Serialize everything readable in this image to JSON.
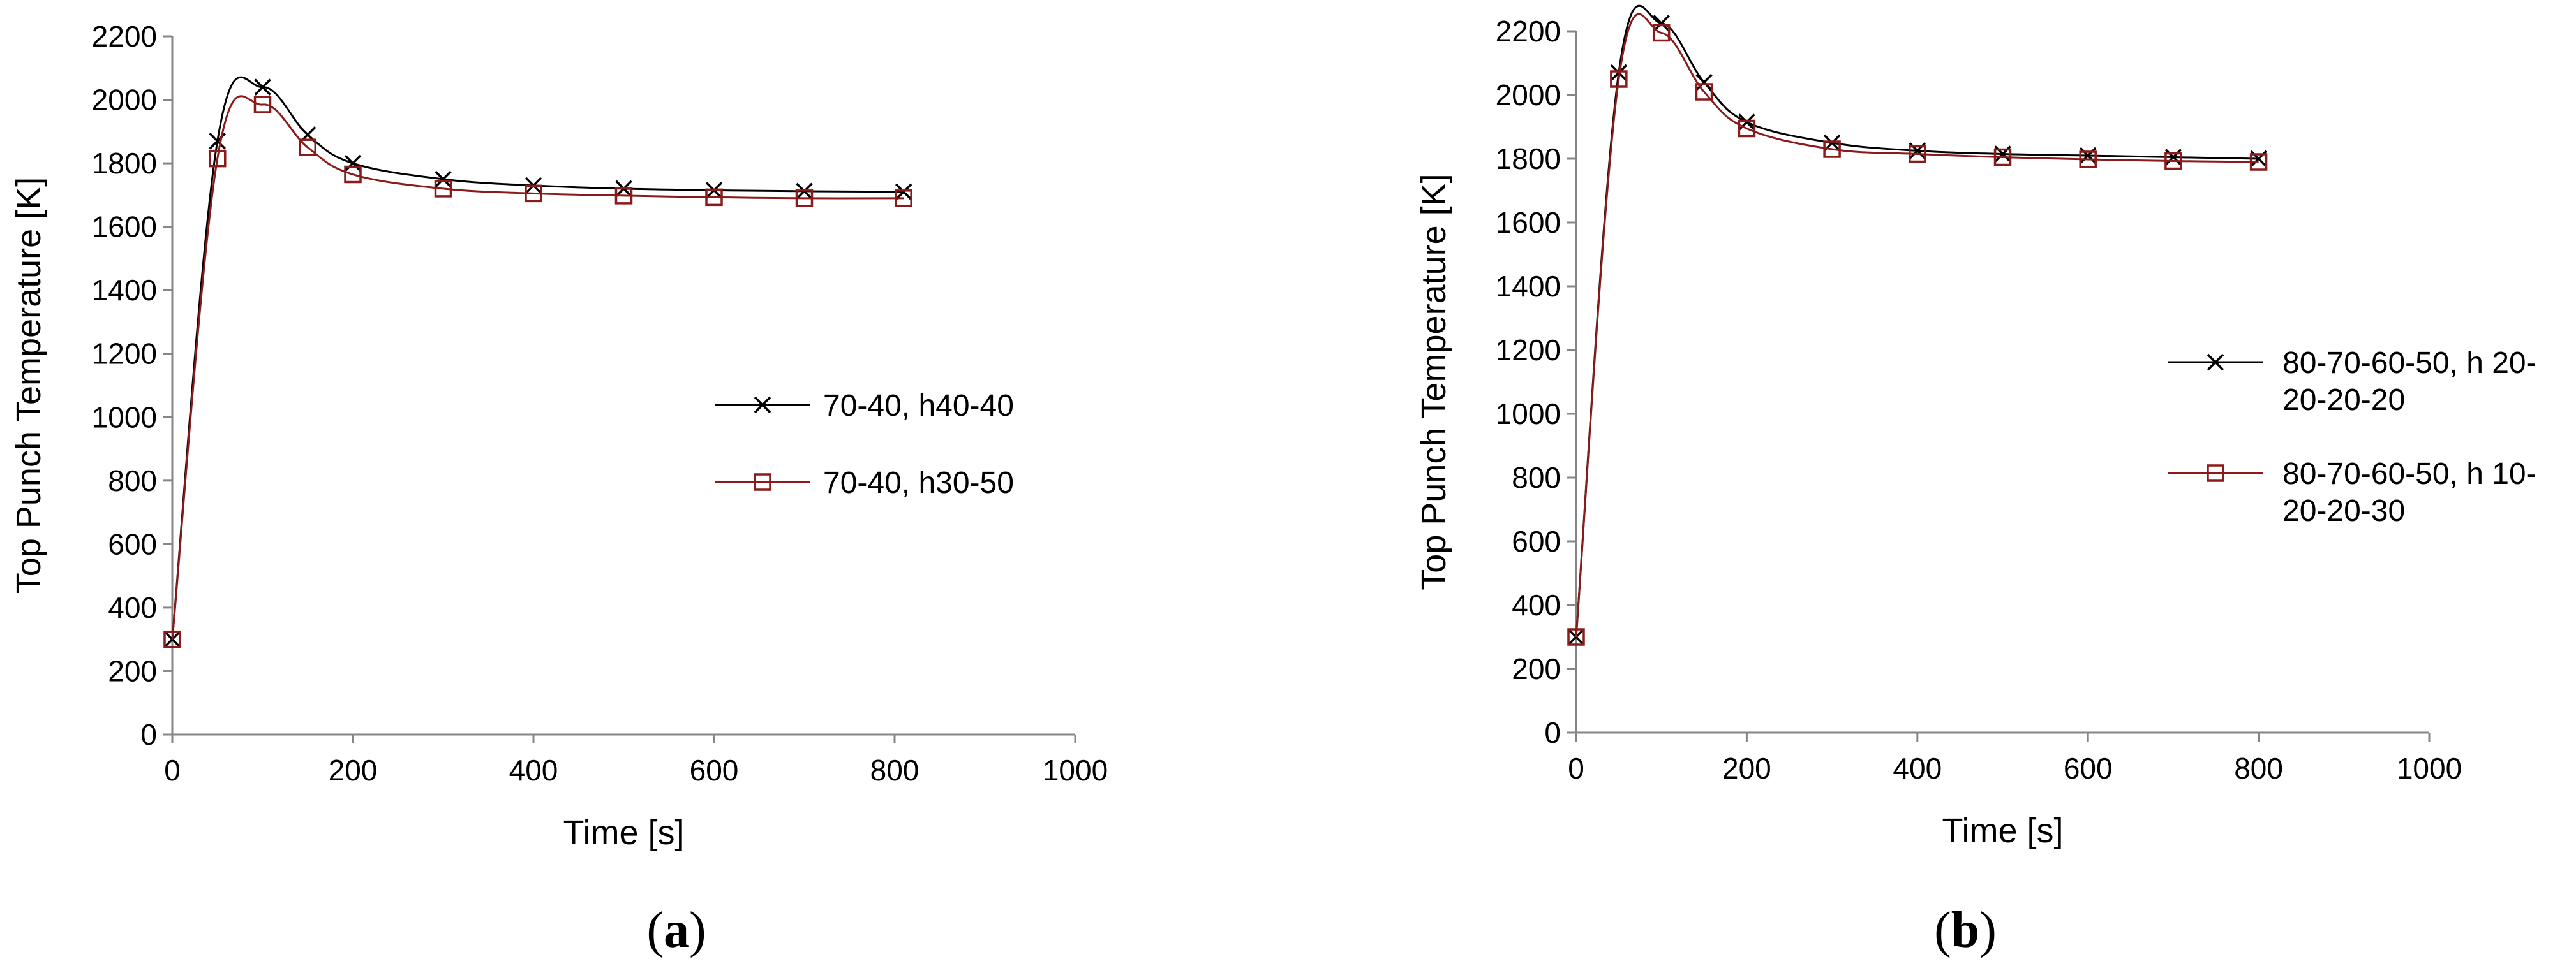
{
  "chart_data": [
    {
      "panel": "a",
      "type": "line",
      "xlabel": "Time [s]",
      "ylabel": "Top Punch Temperature [K]",
      "xlim": [
        0,
        1000
      ],
      "ylim": [
        0,
        2200
      ],
      "xticks": [
        0,
        200,
        400,
        600,
        800,
        1000
      ],
      "yticks": [
        0,
        200,
        400,
        600,
        800,
        1000,
        1200,
        1400,
        1600,
        1800,
        2000,
        2200
      ],
      "grid": false,
      "legend_position": "right",
      "series": [
        {
          "name": "70-40, h40-40",
          "marker": "x",
          "color": "#000000",
          "x": [
            0,
            50,
            100,
            150,
            200,
            300,
            400,
            500,
            600,
            700,
            810
          ],
          "y": [
            300,
            1870,
            2040,
            1890,
            1800,
            1750,
            1730,
            1720,
            1715,
            1712,
            1710
          ]
        },
        {
          "name": "70-40, h30-50",
          "marker": "square",
          "color": "#8B1A1A",
          "x": [
            0,
            50,
            100,
            150,
            200,
            300,
            400,
            500,
            600,
            700,
            810
          ],
          "y": [
            300,
            1815,
            1985,
            1850,
            1765,
            1720,
            1705,
            1698,
            1693,
            1690,
            1690
          ]
        }
      ]
    },
    {
      "panel": "b",
      "type": "line",
      "xlabel": "Time [s]",
      "ylabel": "Top Punch Temperature [K]",
      "xlim": [
        0,
        1000
      ],
      "ylim": [
        0,
        2200
      ],
      "xticks": [
        0,
        200,
        400,
        600,
        800,
        1000
      ],
      "yticks": [
        0,
        200,
        400,
        600,
        800,
        1000,
        1200,
        1400,
        1600,
        1800,
        2000,
        2200
      ],
      "grid": false,
      "legend_position": "right",
      "series": [
        {
          "name": "80-70-60-50, h 20-20-20-20",
          "legend_lines": [
            "80-70-60-50, h 20-",
            "20-20-20"
          ],
          "marker": "x",
          "color": "#000000",
          "x": [
            0,
            50,
            100,
            150,
            200,
            300,
            400,
            500,
            600,
            700,
            800
          ],
          "y": [
            300,
            2070,
            2225,
            2040,
            1915,
            1850,
            1825,
            1815,
            1810,
            1805,
            1800
          ]
        },
        {
          "name": "80-70-60-50, h 10-20-20-30",
          "legend_lines": [
            "80-70-60-50, h 10-",
            "20-20-30"
          ],
          "marker": "square",
          "color": "#8B1A1A",
          "x": [
            0,
            50,
            100,
            150,
            200,
            300,
            400,
            500,
            600,
            700,
            800
          ],
          "y": [
            300,
            2050,
            2195,
            2010,
            1895,
            1830,
            1815,
            1805,
            1798,
            1793,
            1790
          ]
        }
      ]
    }
  ],
  "panel_labels": [
    {
      "open": "(",
      "letter": "a",
      "close": ")"
    },
    {
      "open": "(",
      "letter": "b",
      "close": ")"
    }
  ]
}
